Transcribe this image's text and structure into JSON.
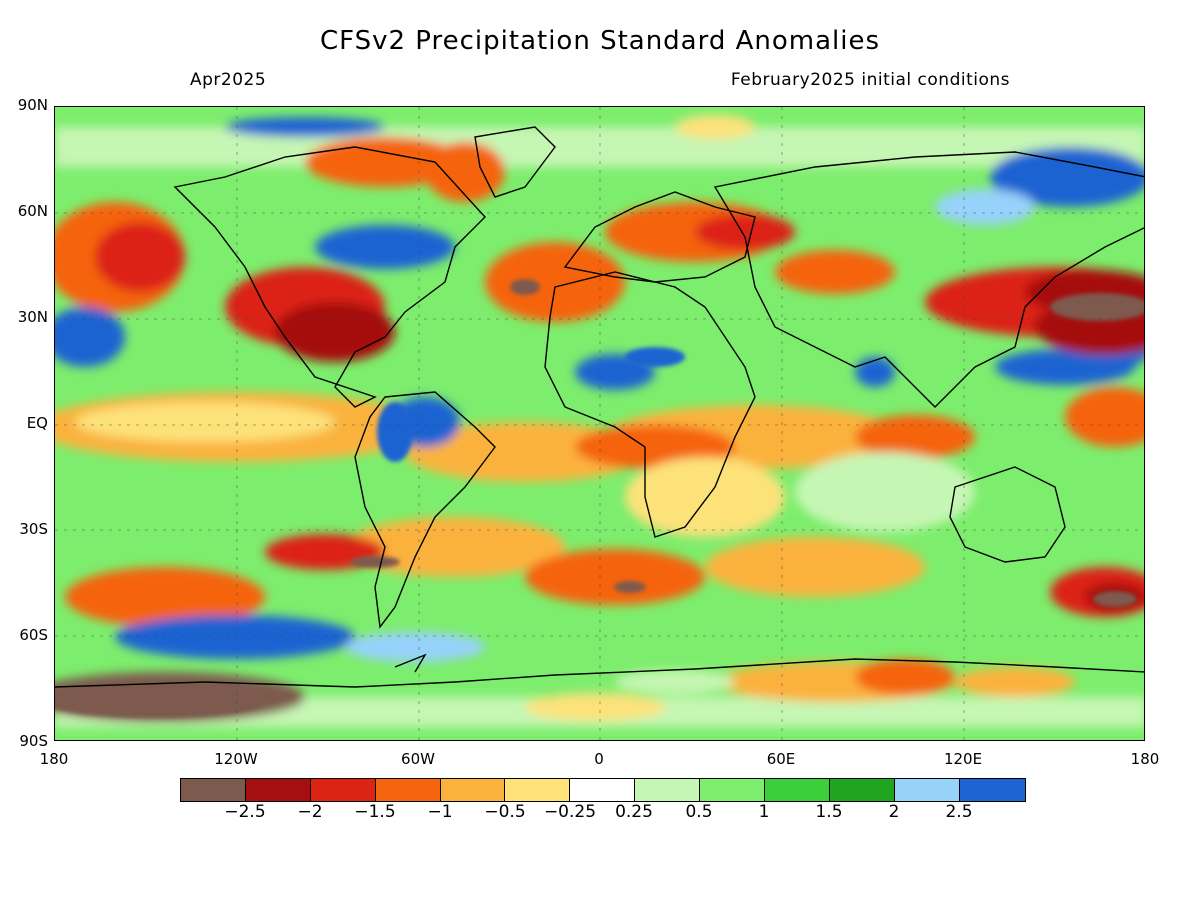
{
  "title": "CFSv2 Precipitation Standard Anomalies",
  "subtitle_left": "Apr2025",
  "subtitle_right": "February2025 initial conditions",
  "lat_labels": [
    "90N",
    "60N",
    "30N",
    "EQ",
    "30S",
    "60S",
    "90S"
  ],
  "lon_labels": [
    "180",
    "120W",
    "60W",
    "0",
    "60E",
    "120E",
    "180"
  ],
  "colorbar": {
    "colors": [
      "#7d5a4e",
      "#a50f0f",
      "#dc2414",
      "#f5640f",
      "#fbb23c",
      "#fde27a",
      "#ffffff",
      "#c6f6b4",
      "#7ded6d",
      "#3ccf3c",
      "#1fa51f",
      "#96d2fa",
      "#1e64d2"
    ],
    "labels": [
      "−2.5",
      "−2",
      "−1.5",
      "−1",
      "−0.5",
      "−0.25",
      "0.25",
      "0.5",
      "1",
      "1.5",
      "2",
      "2.5"
    ]
  }
}
